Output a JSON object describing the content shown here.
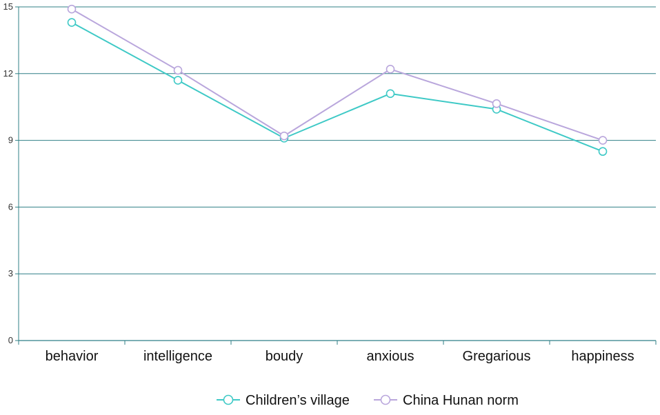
{
  "chart_data": {
    "type": "line",
    "title": "",
    "xlabel": "",
    "ylabel": "",
    "categories": [
      "behavior",
      "intelligence",
      "boudy",
      "anxious",
      "Gregarious",
      "happiness"
    ],
    "ylim": [
      0,
      15
    ],
    "y_ticks": [
      0,
      3,
      6,
      9,
      12,
      15
    ],
    "grid": "horizontal",
    "legend_position": "bottom",
    "series": [
      {
        "name": "Children’s village",
        "color": "#3ec9c6",
        "values": [
          14.3,
          11.7,
          9.1,
          11.1,
          10.4,
          8.5
        ]
      },
      {
        "name": "China Hunan norm",
        "color": "#b9a6dc",
        "values": [
          14.9,
          12.15,
          9.2,
          12.2,
          10.65,
          9.0
        ]
      }
    ]
  }
}
